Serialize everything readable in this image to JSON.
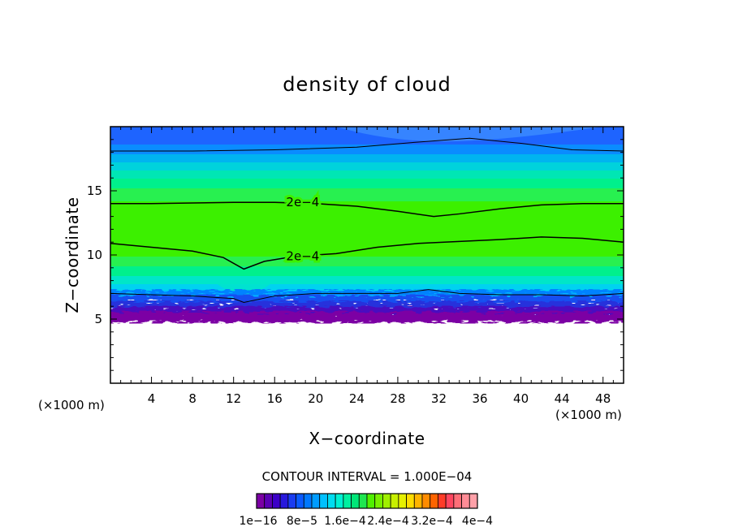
{
  "chart_data": {
    "type": "heatmap",
    "title": "density of cloud",
    "xlabel": "X−coordinate",
    "ylabel": "Z−coordinate",
    "x_unit_label": "(×1000 m)",
    "y_unit_label": "(×1000 m)",
    "xlim": [
      0,
      50
    ],
    "ylim": [
      0,
      20
    ],
    "x_ticks": [
      4,
      8,
      12,
      16,
      20,
      24,
      28,
      32,
      36,
      40,
      44,
      48
    ],
    "x_tick_labels": [
      "4",
      "8",
      "12",
      "16",
      "20",
      "24",
      "28",
      "32",
      "36",
      "40",
      "44",
      "48"
    ],
    "y_ticks": [
      5,
      10,
      15
    ],
    "y_tick_labels": [
      "5",
      "10",
      "15"
    ],
    "contour_interval_text": "CONTOUR INTERVAL = 1.000E−04",
    "contour_lines": [
      {
        "label": "2e−4",
        "label_at": [
          17,
          14.1
        ],
        "points": [
          [
            0,
            14.0
          ],
          [
            4,
            14.0
          ],
          [
            8,
            14.05
          ],
          [
            12,
            14.1
          ],
          [
            16,
            14.1
          ],
          [
            20,
            14.0
          ],
          [
            24,
            13.8
          ],
          [
            28,
            13.4
          ],
          [
            31.5,
            13.0
          ],
          [
            34,
            13.2
          ],
          [
            38,
            13.6
          ],
          [
            42,
            13.9
          ],
          [
            46,
            14.0
          ],
          [
            50,
            14.0
          ]
        ]
      },
      {
        "label": "2e−4",
        "label_at": [
          17,
          9.9
        ],
        "points": [
          [
            0,
            10.9
          ],
          [
            4,
            10.6
          ],
          [
            8,
            10.3
          ],
          [
            11,
            9.8
          ],
          [
            13,
            8.9
          ],
          [
            15,
            9.5
          ],
          [
            18,
            9.9
          ],
          [
            22,
            10.1
          ],
          [
            26,
            10.6
          ],
          [
            30,
            10.9
          ],
          [
            34,
            11.05
          ],
          [
            38,
            11.2
          ],
          [
            42,
            11.4
          ],
          [
            46,
            11.3
          ],
          [
            50,
            11.0
          ]
        ]
      },
      {
        "label": "",
        "points": [
          [
            0,
            18.1
          ],
          [
            8,
            18.1
          ],
          [
            16,
            18.2
          ],
          [
            24,
            18.4
          ],
          [
            30,
            18.8
          ],
          [
            35,
            19.1
          ],
          [
            40,
            18.7
          ],
          [
            45,
            18.2
          ],
          [
            50,
            18.1
          ]
        ]
      },
      {
        "label": "",
        "points": [
          [
            0,
            7.0
          ],
          [
            4,
            6.9
          ],
          [
            8,
            6.8
          ],
          [
            12,
            6.6
          ],
          [
            13,
            6.3
          ],
          [
            16,
            6.8
          ],
          [
            20,
            7.0
          ],
          [
            24,
            7.0
          ],
          [
            28,
            7.0
          ],
          [
            31,
            7.3
          ],
          [
            34,
            7.0
          ],
          [
            38,
            6.9
          ],
          [
            42,
            6.9
          ],
          [
            46,
            6.8
          ],
          [
            50,
            7.0
          ]
        ]
      }
    ],
    "colorbar": {
      "colors": [
        "#7b00a4",
        "#5a00b4",
        "#3c00c8",
        "#2818dc",
        "#1a3cf0",
        "#0a5aff",
        "#0078ff",
        "#009cff",
        "#00c0ff",
        "#00dcf0",
        "#00f0d2",
        "#00f0a0",
        "#00e678",
        "#1ee650",
        "#50f000",
        "#78f000",
        "#a0f000",
        "#c8f000",
        "#e6f000",
        "#ffdc00",
        "#ffb400",
        "#ff8c00",
        "#ff6400",
        "#ff3c28",
        "#ff4660",
        "#ff6e78",
        "#ff8c96",
        "#ffa0a8"
      ],
      "labels": [
        "1e−16",
        "8e−5",
        "1.6e−4",
        "2.4e−4",
        "3.2e−4",
        "4e−4"
      ]
    }
  }
}
